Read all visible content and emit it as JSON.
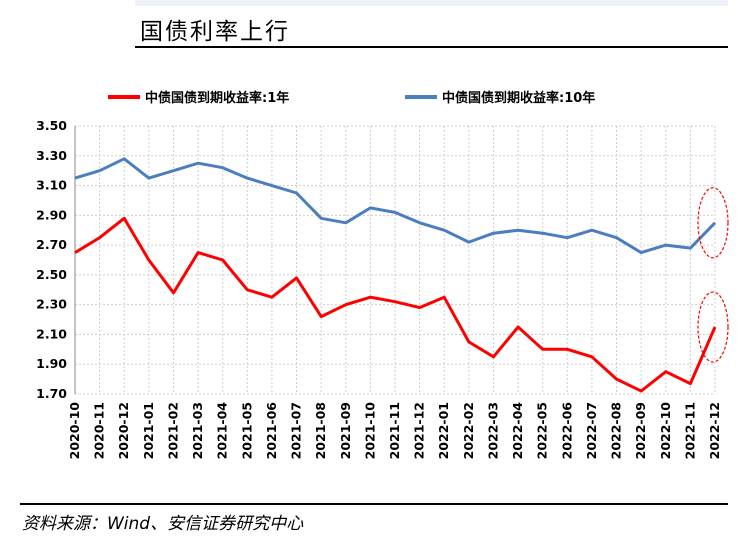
{
  "page": {
    "title": "国债利率上行",
    "source": "资料来源：Wind、安信证券研究中心"
  },
  "chart_data": {
    "type": "line",
    "title": "国债利率上行",
    "xlabel": "",
    "ylabel": "",
    "x": [
      "2020-10",
      "2020-11",
      "2020-12",
      "2021-01",
      "2021-02",
      "2021-03",
      "2021-04",
      "2021-05",
      "2021-06",
      "2021-07",
      "2021-08",
      "2021-09",
      "2021-10",
      "2021-11",
      "2021-12",
      "2022-01",
      "2022-02",
      "2022-03",
      "2022-04",
      "2022-05",
      "2022-06",
      "2022-07",
      "2022-08",
      "2022-09",
      "2022-10",
      "2022-11",
      "2022-12"
    ],
    "yticks": [
      "3.50",
      "3.30",
      "3.10",
      "2.90",
      "2.70",
      "2.50",
      "2.30",
      "2.10",
      "1.90",
      "1.70"
    ],
    "ylim": [
      1.7,
      3.5
    ],
    "grid": true,
    "legend_position": "top",
    "series": [
      {
        "name": "中债国债到期收益率:1年",
        "color": "#ff0000",
        "values": [
          2.65,
          2.75,
          2.88,
          2.6,
          2.38,
          2.65,
          2.6,
          2.4,
          2.35,
          2.48,
          2.22,
          2.3,
          2.35,
          2.32,
          2.28,
          2.35,
          2.05,
          1.95,
          2.15,
          2.0,
          2.0,
          1.95,
          1.8,
          1.72,
          1.85,
          1.77,
          2.15
        ]
      },
      {
        "name": "中债国债到期收益率:10年",
        "color": "#4a7ebf",
        "values": [
          3.15,
          3.2,
          3.28,
          3.15,
          3.2,
          3.25,
          3.22,
          3.15,
          3.1,
          3.05,
          2.88,
          2.85,
          2.95,
          2.92,
          2.85,
          2.8,
          2.72,
          2.78,
          2.8,
          2.78,
          2.75,
          2.8,
          2.75,
          2.65,
          2.7,
          2.68,
          2.85
        ]
      }
    ],
    "annotations": [
      {
        "shape": "dashed-ellipse",
        "color": "#ff0000",
        "series": "both",
        "x": "2022-12"
      }
    ]
  }
}
